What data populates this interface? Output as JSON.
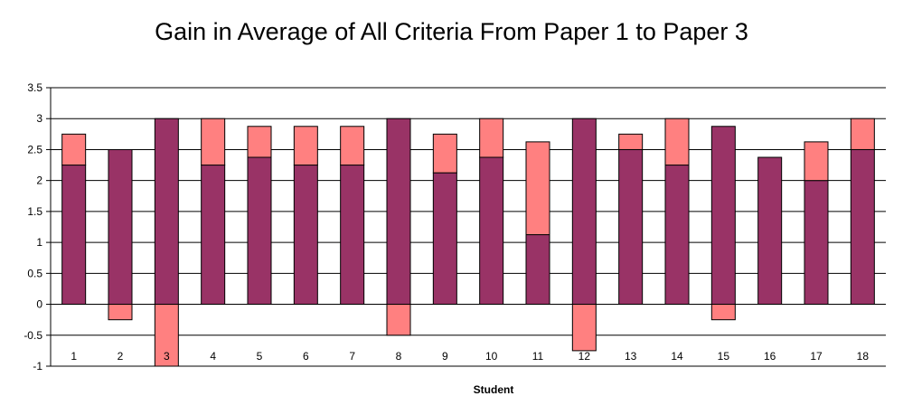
{
  "chart_data": {
    "type": "bar",
    "stacked_overlay": true,
    "title": "Gain in Average of All Criteria From Paper 1 to Paper 3",
    "xlabel": "Student",
    "ylabel": "",
    "ylim": [
      -1,
      3.5
    ],
    "yticks": [
      "3.5",
      "3",
      "2.5",
      "2",
      "1.5",
      "1",
      "0.5",
      "0",
      "-0.5",
      "-1"
    ],
    "grid": true,
    "legend": "none",
    "categories": [
      "1",
      "2",
      "3",
      "4",
      "5",
      "6",
      "7",
      "8",
      "9",
      "10",
      "11",
      "12",
      "13",
      "14",
      "15",
      "16",
      "17",
      "18"
    ],
    "series": [
      {
        "color": "#993366",
        "values": [
          2.25,
          2.5,
          3,
          2.25,
          2.375,
          2.25,
          2.25,
          3,
          2.125,
          2.375,
          1.125,
          3,
          2.5,
          2.25,
          2.875,
          2.375,
          2,
          2.5
        ]
      },
      {
        "color": "#ff8080",
        "values": [
          0.5,
          -0.25,
          -1,
          0.75,
          0.5,
          0.625,
          0.625,
          -0.5,
          0.625,
          0.625,
          1.5,
          -0.75,
          0.25,
          0.75,
          -0.25,
          0,
          0.625,
          0.5
        ]
      }
    ]
  }
}
